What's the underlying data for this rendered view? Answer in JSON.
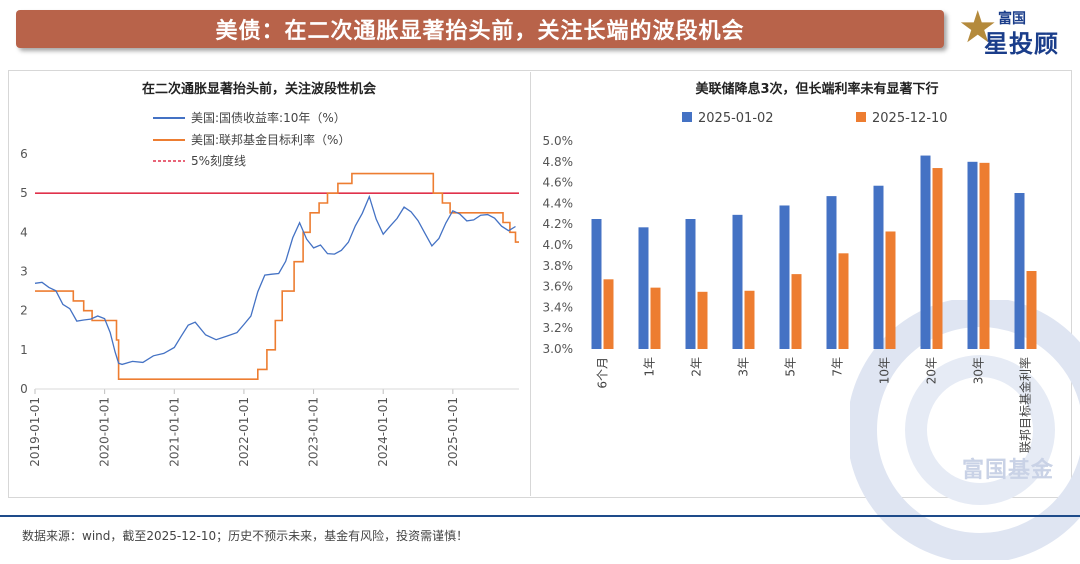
{
  "banner": {
    "title": "美债：在二次通胀显著抬头前，关注长端的波段机会"
  },
  "logo": {
    "top": "富国",
    "main": "星投顾",
    "icon": "star-icon"
  },
  "watermark": {
    "text": "富国基金"
  },
  "footer": {
    "note": "数据来源：wind，截至2025-12-10；历史不预示未来，基金有风险，投资需谨慎！"
  },
  "colors": {
    "banner": "#b8634a",
    "blue": "#4472c4",
    "orange": "#ed7d31",
    "red": "#e0314b"
  },
  "chart_data": [
    {
      "type": "line",
      "title": "在二次通胀显著抬头前，关注波段性机会",
      "xlabel": "",
      "ylabel": "",
      "x_ticks": [
        "2019-01-01",
        "2020-01-01",
        "2021-01-01",
        "2022-01-01",
        "2023-01-01",
        "2024-01-01",
        "2025-01-01"
      ],
      "y_ticks": [
        "0",
        "1",
        "2",
        "3",
        "4",
        "5",
        "6"
      ],
      "xlim": [
        2019.0,
        2025.95
      ],
      "ylim": [
        0,
        6
      ],
      "series": [
        {
          "name": "美国:国债收益率:10年（%）",
          "color": "#4472c4",
          "x": [
            2019.0,
            2019.1,
            2019.2,
            2019.3,
            2019.4,
            2019.5,
            2019.6,
            2019.7,
            2019.8,
            2019.9,
            2020.0,
            2020.08,
            2020.15,
            2020.2,
            2020.25,
            2020.4,
            2020.55,
            2020.7,
            2020.85,
            2021.0,
            2021.1,
            2021.2,
            2021.3,
            2021.45,
            2021.6,
            2021.75,
            2021.9,
            2022.0,
            2022.1,
            2022.2,
            2022.3,
            2022.4,
            2022.5,
            2022.6,
            2022.7,
            2022.8,
            2022.9,
            2023.0,
            2023.1,
            2023.2,
            2023.3,
            2023.4,
            2023.5,
            2023.6,
            2023.7,
            2023.8,
            2023.9,
            2024.0,
            2024.1,
            2024.2,
            2024.3,
            2024.4,
            2024.5,
            2024.6,
            2024.7,
            2024.8,
            2024.9,
            2025.0,
            2025.1,
            2025.2,
            2025.3,
            2025.4,
            2025.5,
            2025.6,
            2025.7,
            2025.8,
            2025.9
          ],
          "values": [
            2.7,
            2.7,
            2.55,
            2.45,
            2.1,
            2.0,
            1.7,
            1.75,
            1.8,
            1.9,
            1.85,
            1.5,
            1.0,
            0.7,
            0.65,
            0.7,
            0.65,
            0.8,
            0.85,
            1.0,
            1.3,
            1.6,
            1.7,
            1.4,
            1.3,
            1.4,
            1.5,
            1.7,
            1.9,
            2.5,
            2.9,
            2.9,
            2.9,
            3.2,
            3.8,
            4.2,
            3.8,
            3.6,
            3.7,
            3.5,
            3.5,
            3.6,
            3.8,
            4.2,
            4.5,
            4.9,
            4.3,
            3.9,
            4.1,
            4.3,
            4.6,
            4.5,
            4.3,
            4.0,
            3.7,
            3.9,
            4.3,
            4.6,
            4.5,
            4.3,
            4.3,
            4.4,
            4.4,
            4.3,
            4.1,
            4.0,
            4.15
          ]
        },
        {
          "name": "美国:联邦基金目标利率（%）",
          "color": "#ed7d31",
          "step": true,
          "x": [
            2019.0,
            2019.55,
            2019.7,
            2019.82,
            2020.17,
            2020.2,
            2022.2,
            2022.33,
            2022.45,
            2022.55,
            2022.72,
            2022.85,
            2022.95,
            2023.08,
            2023.2,
            2023.35,
            2023.55,
            2024.72,
            2024.85,
            2024.96,
            2025.72,
            2025.82,
            2025.9,
            2025.95
          ],
          "values": [
            2.5,
            2.25,
            2.0,
            1.75,
            1.25,
            0.25,
            0.5,
            1.0,
            1.75,
            2.5,
            3.25,
            4.0,
            4.5,
            4.75,
            5.0,
            5.25,
            5.5,
            5.0,
            4.75,
            4.5,
            4.25,
            4.0,
            3.75,
            3.75
          ]
        },
        {
          "name": "5%刻度线",
          "color": "#e0314b",
          "const": 5
        }
      ]
    },
    {
      "type": "bar",
      "title": "美联储降息3次，但长端利率未有显著下行",
      "categories": [
        "6个月",
        "1年",
        "2年",
        "3年",
        "5年",
        "7年",
        "10年",
        "20年",
        "30年",
        "联邦目标基金利率"
      ],
      "y_ticks": [
        "3.0%",
        "3.2%",
        "3.4%",
        "3.6%",
        "3.8%",
        "4.0%",
        "4.2%",
        "4.4%",
        "4.6%",
        "4.8%",
        "5.0%"
      ],
      "ylim": [
        3.0,
        5.0
      ],
      "series": [
        {
          "name": "2025-01-02",
          "color": "#4472c4",
          "values": [
            4.25,
            4.17,
            4.25,
            4.29,
            4.38,
            4.47,
            4.57,
            4.86,
            4.8,
            4.5
          ]
        },
        {
          "name": "2025-12-10",
          "color": "#ed7d31",
          "values": [
            3.67,
            3.59,
            3.55,
            3.56,
            3.72,
            3.92,
            4.13,
            4.74,
            4.79,
            3.75
          ]
        }
      ]
    }
  ]
}
